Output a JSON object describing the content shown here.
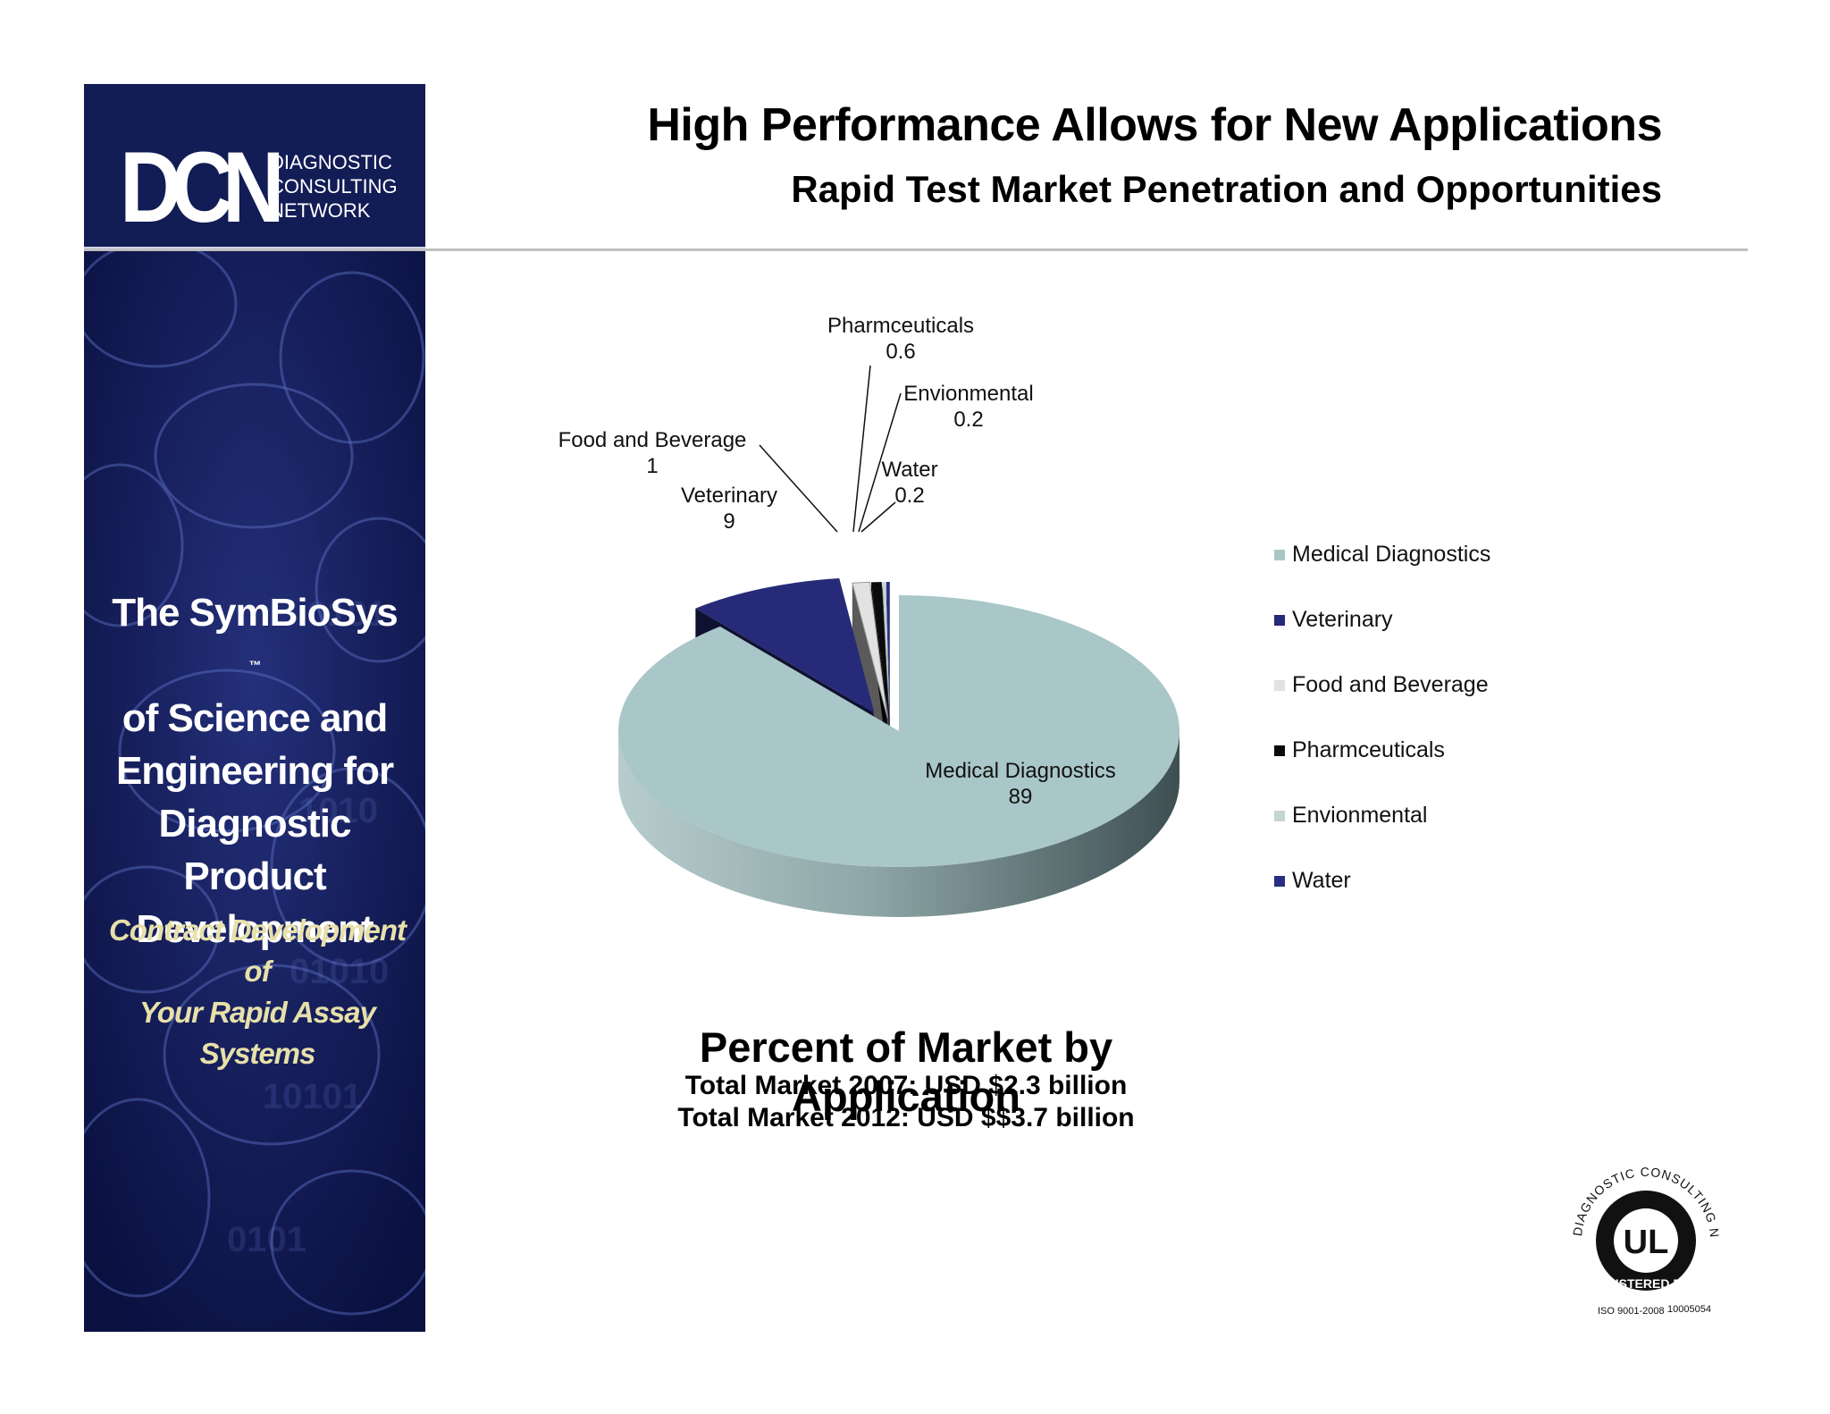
{
  "sidebar": {
    "logo_mark": "DCN",
    "logo_words": [
      "DIAGNOSTIC",
      "CONSULTING",
      "NETWORK"
    ],
    "tagline": [
      "The SymBioSys",
      "of Science and",
      "Engineering for",
      "Diagnostic  Product",
      "Development"
    ],
    "tagline_tm": "™",
    "contract": [
      "Contract Development of",
      "Your Rapid Assay Systems"
    ]
  },
  "header": {
    "title": "High Performance Allows for New Applications",
    "subtitle": "Rapid Test Market Penetration and  Opportunities"
  },
  "chart_data": {
    "type": "pie",
    "categories": [
      "Medical Diagnostics",
      "Veterinary",
      "Food and Beverage",
      "Pharmceuticals",
      "Envionmental",
      "Water"
    ],
    "values": [
      89,
      9,
      1,
      0.6,
      0.2,
      0.2
    ],
    "value_labels": [
      "89",
      "9",
      "1",
      "0.6",
      "0.2",
      "0.2"
    ],
    "colors": [
      "#a9c6c8",
      "#262a78",
      "#e2e2e2",
      "#0b0b0b",
      "#c4d5d5",
      "#2a2e82"
    ],
    "legend_placement": "right",
    "3d": true
  },
  "caption": {
    "main": "Percent of Market by Application",
    "line1": "Total Market 2007: USD $2.3 billion",
    "line2": "Total Market 2012: USD $$3.7 billion"
  },
  "seal": {
    "arc_text": "DIAGNOSTIC CONSULTING NETWORK",
    "ul": "UL",
    "registered": "REGISTERED FIRM",
    "iso": "ISO 9001-2008",
    "number": "10005054"
  }
}
